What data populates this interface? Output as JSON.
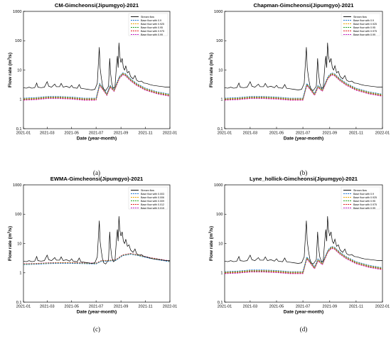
{
  "figure": {
    "panel_labels": [
      "(a)",
      "(b)",
      "(c)",
      "(d)"
    ],
    "ylabel_prefix": "Flow rate (m",
    "ylabel_sup": "3",
    "ylabel_suffix": "/s)",
    "xlabel": "Date (year-month)"
  },
  "chart_data": [
    {
      "type": "line",
      "title": "CM-Gimcheonsi(Jipumgyo)-2021",
      "xlabel": "Date (year-month)",
      "ylabel": "Flow rate (m3/s)",
      "yscale": "log",
      "ylim": [
        0.1,
        1000
      ],
      "yticks": [
        "0.1",
        "1",
        "10",
        "100",
        "1000"
      ],
      "xlim": [
        "2021-01",
        "2022-01"
      ],
      "xticks": [
        "2021-01",
        "2021-03",
        "2021-05",
        "2021-07",
        "2021-09",
        "2021-11",
        "2022-01"
      ],
      "legend_position": "top-right",
      "grid": false,
      "series": [
        {
          "name": "Stream flow",
          "color": "#000000",
          "style": "solid"
        },
        {
          "name": "Base flow with 0.9",
          "color": "#1f77d0",
          "style": "dashed",
          "factor": 1.0
        },
        {
          "name": "Base flow with 0.925",
          "color": "#e8a200",
          "style": "dashed",
          "factor": 0.96
        },
        {
          "name": "Base flow with 0.95",
          "color": "#20a020",
          "style": "dashed",
          "factor": 0.93
        },
        {
          "name": "Base flow with 0.975",
          "color": "#e02020",
          "style": "dashed",
          "factor": 0.89
        },
        {
          "name": "Base flow with 0.99",
          "color": "#c020c0",
          "style": "dashed",
          "factor": 0.85
        }
      ]
    },
    {
      "type": "line",
      "title": "Chapman-Gimcheonsi(Jipumgyo)-2021",
      "xlabel": "Date (year-month)",
      "ylabel": "Flow rate (m3/s)",
      "yscale": "log",
      "ylim": [
        0.1,
        1000
      ],
      "yticks": [
        "0.1",
        "1",
        "10",
        "100",
        "1000"
      ],
      "xlim": [
        "2021-01",
        "2022-01"
      ],
      "xticks": [
        "2021-01",
        "2021-03",
        "2021-05",
        "2021-07",
        "2021-09",
        "2021-11",
        "2022-01"
      ],
      "legend_position": "top-right",
      "grid": false,
      "series": [
        {
          "name": "Stream flow",
          "color": "#000000",
          "style": "solid"
        },
        {
          "name": "Base flow with 0.9",
          "color": "#1f77d0",
          "style": "dashed",
          "factor": 1.0
        },
        {
          "name": "Base flow with 0.925",
          "color": "#e8a200",
          "style": "dashed",
          "factor": 0.96
        },
        {
          "name": "Base flow with 0.95",
          "color": "#20a020",
          "style": "dashed",
          "factor": 0.93
        },
        {
          "name": "Base flow with 0.975",
          "color": "#e02020",
          "style": "dashed",
          "factor": 0.89
        },
        {
          "name": "Base flow with 0.99",
          "color": "#c020c0",
          "style": "dashed",
          "factor": 0.85
        }
      ]
    },
    {
      "type": "line",
      "title": "EWMA-Gimcheonsi(Jipumgyo)-2021",
      "xlabel": "Date (year-month)",
      "ylabel": "Flow rate (m3/s)",
      "yscale": "log",
      "ylim": [
        0.1,
        1000
      ],
      "yticks": [
        "0.1",
        "1",
        "10",
        "100",
        "1000"
      ],
      "xlim": [
        "2021-01",
        "2022-01"
      ],
      "xticks": [
        "2021-01",
        "2021-03",
        "2021-05",
        "2021-07",
        "2021-09",
        "2021-11",
        "2022-01"
      ],
      "legend_position": "top-right",
      "grid": false,
      "series": [
        {
          "name": "Stream flow",
          "color": "#000000",
          "style": "solid"
        },
        {
          "name": "Base flow with 0.003",
          "color": "#1f77d0",
          "style": "dashed",
          "factor": 0.55
        },
        {
          "name": "Base flow with 0.006",
          "color": "#e8a200",
          "style": "dashed",
          "factor": 0.75
        },
        {
          "name": "Base flow with 0.009",
          "color": "#20a020",
          "style": "dashed",
          "factor": 0.9
        },
        {
          "name": "Base flow with 0.012",
          "color": "#e02020",
          "style": "dashed",
          "factor": 1.05
        },
        {
          "name": "Base flow with 0.015",
          "color": "#c020c0",
          "style": "dashed",
          "factor": 1.2
        }
      ]
    },
    {
      "type": "line",
      "title": "Lyne_hollick-Gimcheonsi(Jipumgyo)-2021",
      "xlabel": "Date (year-month)",
      "ylabel": "Flow rate (m3/s)",
      "yscale": "log",
      "ylim": [
        0.1,
        1000
      ],
      "yticks": [
        "0.1",
        "1",
        "10",
        "100",
        "1000"
      ],
      "xlim": [
        "2021-01",
        "2022-01"
      ],
      "xticks": [
        "2021-01",
        "2021-03",
        "2021-05",
        "2021-07",
        "2021-09",
        "2021-11",
        "2022-01"
      ],
      "legend_position": "top-right",
      "grid": false,
      "series": [
        {
          "name": "Stream flow",
          "color": "#000000",
          "style": "solid"
        },
        {
          "name": "Base flow with 0.9",
          "color": "#1f77d0",
          "style": "dashed",
          "factor": 1.0
        },
        {
          "name": "Base flow with 0.925",
          "color": "#e8a200",
          "style": "dashed",
          "factor": 0.96
        },
        {
          "name": "Base flow with 0.95",
          "color": "#20a020",
          "style": "dashed",
          "factor": 0.93
        },
        {
          "name": "Base flow with 0.975",
          "color": "#e02020",
          "style": "dashed",
          "factor": 0.89
        },
        {
          "name": "Base flow with 0.99",
          "color": "#c020c0",
          "style": "dashed",
          "factor": 0.85
        }
      ]
    }
  ],
  "stream_flow_points": [
    [
      "2021-01-01",
      2.5
    ],
    [
      "2021-01-08",
      2.4
    ],
    [
      "2021-01-15",
      2.6
    ],
    [
      "2021-01-22",
      2.4
    ],
    [
      "2021-01-29",
      2.5
    ],
    [
      "2021-02-03",
      3.6
    ],
    [
      "2021-02-06",
      2.6
    ],
    [
      "2021-02-14",
      2.5
    ],
    [
      "2021-02-22",
      2.6
    ],
    [
      "2021-03-01",
      4.0
    ],
    [
      "2021-03-05",
      2.8
    ],
    [
      "2021-03-12",
      2.6
    ],
    [
      "2021-03-20",
      3.3
    ],
    [
      "2021-03-24",
      2.7
    ],
    [
      "2021-04-01",
      2.7
    ],
    [
      "2021-04-05",
      3.5
    ],
    [
      "2021-04-10",
      2.6
    ],
    [
      "2021-04-18",
      2.8
    ],
    [
      "2021-04-26",
      2.5
    ],
    [
      "2021-05-01",
      3.0
    ],
    [
      "2021-05-05",
      2.5
    ],
    [
      "2021-05-15",
      2.4
    ],
    [
      "2021-05-20",
      3.2
    ],
    [
      "2021-05-24",
      2.4
    ],
    [
      "2021-06-01",
      2.3
    ],
    [
      "2021-06-10",
      2.2
    ],
    [
      "2021-06-20",
      2.1
    ],
    [
      "2021-06-28",
      2.2
    ],
    [
      "2021-07-04",
      3.5
    ],
    [
      "2021-07-07",
      20.0
    ],
    [
      "2021-07-09",
      60.0
    ],
    [
      "2021-07-11",
      12.0
    ],
    [
      "2021-07-14",
      5.5
    ],
    [
      "2021-07-17",
      3.0
    ],
    [
      "2021-07-20",
      2.2
    ],
    [
      "2021-07-25",
      2.0
    ],
    [
      "2021-08-01",
      2.8
    ],
    [
      "2021-08-04",
      25.0
    ],
    [
      "2021-08-06",
      8.0
    ],
    [
      "2021-08-09",
      3.5
    ],
    [
      "2021-08-13",
      2.4
    ],
    [
      "2021-08-17",
      2.6
    ],
    [
      "2021-08-21",
      15.0
    ],
    [
      "2021-08-23",
      30.0
    ],
    [
      "2021-08-25",
      12.0
    ],
    [
      "2021-08-27",
      85.0
    ],
    [
      "2021-08-29",
      30.0
    ],
    [
      "2021-09-01",
      18.0
    ],
    [
      "2021-09-04",
      25.0
    ],
    [
      "2021-09-07",
      12.0
    ],
    [
      "2021-09-10",
      10.0
    ],
    [
      "2021-09-13",
      14.0
    ],
    [
      "2021-09-17",
      8.0
    ],
    [
      "2021-09-21",
      9.0
    ],
    [
      "2021-09-25",
      6.0
    ],
    [
      "2021-10-01",
      5.0
    ],
    [
      "2021-10-06",
      6.5
    ],
    [
      "2021-10-10",
      4.5
    ],
    [
      "2021-10-16",
      4.0
    ],
    [
      "2021-10-22",
      4.2
    ],
    [
      "2021-10-28",
      3.6
    ],
    [
      "2021-11-04",
      3.5
    ],
    [
      "2021-11-12",
      3.2
    ],
    [
      "2021-11-20",
      3.0
    ],
    [
      "2021-11-28",
      2.9
    ],
    [
      "2021-12-06",
      2.8
    ],
    [
      "2021-12-15",
      2.7
    ],
    [
      "2021-12-23",
      2.6
    ],
    [
      "2022-01-01",
      2.6
    ]
  ],
  "base_flow_points": [
    [
      "2021-01-01",
      1.1
    ],
    [
      "2021-02-01",
      1.15
    ],
    [
      "2021-03-01",
      1.25
    ],
    [
      "2021-04-01",
      1.25
    ],
    [
      "2021-05-01",
      1.2
    ],
    [
      "2021-06-01",
      1.1
    ],
    [
      "2021-07-01",
      1.1
    ],
    [
      "2021-07-10",
      3.5
    ],
    [
      "2021-07-18",
      2.5
    ],
    [
      "2021-07-28",
      1.6
    ],
    [
      "2021-08-05",
      3.0
    ],
    [
      "2021-08-15",
      2.2
    ],
    [
      "2021-08-28",
      6.0
    ],
    [
      "2021-09-05",
      8.0
    ],
    [
      "2021-09-12",
      7.5
    ],
    [
      "2021-09-25",
      5.0
    ],
    [
      "2021-10-10",
      3.5
    ],
    [
      "2021-11-01",
      2.4
    ],
    [
      "2021-12-01",
      1.8
    ],
    [
      "2022-01-01",
      1.5
    ]
  ],
  "base_flow_points_ewma": [
    [
      "2021-01-01",
      2.0
    ],
    [
      "2021-02-01",
      2.05
    ],
    [
      "2021-03-01",
      2.15
    ],
    [
      "2021-04-01",
      2.2
    ],
    [
      "2021-05-01",
      2.2
    ],
    [
      "2021-06-01",
      2.15
    ],
    [
      "2021-07-01",
      2.1
    ],
    [
      "2021-07-15",
      2.6
    ],
    [
      "2021-08-01",
      2.6
    ],
    [
      "2021-08-20",
      2.8
    ],
    [
      "2021-09-05",
      4.0
    ],
    [
      "2021-09-25",
      4.5
    ],
    [
      "2021-10-15",
      4.0
    ],
    [
      "2021-11-10",
      3.3
    ],
    [
      "2021-12-10",
      2.8
    ],
    [
      "2022-01-01",
      2.5
    ]
  ]
}
